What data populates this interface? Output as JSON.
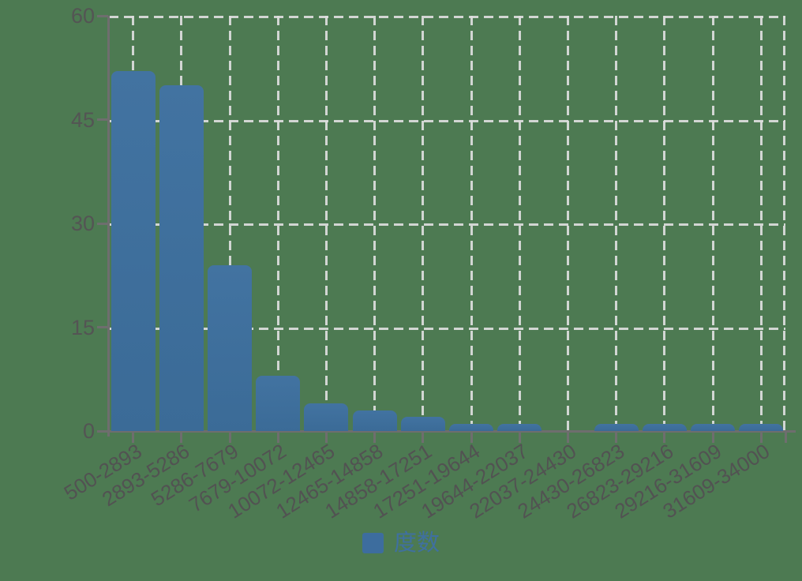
{
  "chart_data": {
    "type": "bar",
    "title": "",
    "categories": [
      "500-2893",
      "2893-5286",
      "5286-7679",
      "7679-10072",
      "10072-12465",
      "12465-14858",
      "14858-17251",
      "17251-19644",
      "19644-22037",
      "22037-24430",
      "24430-26823",
      "26823-29216",
      "29216-31609",
      "31609-34000"
    ],
    "series": [
      {
        "name": "度数",
        "values": [
          52,
          50,
          24,
          8,
          4,
          3,
          2,
          1,
          1,
          0,
          1,
          1,
          1,
          1
        ]
      }
    ],
    "xlabel": "",
    "ylabel": "",
    "ylim": [
      0,
      60
    ],
    "yticks": [
      0,
      15,
      30,
      45,
      60
    ],
    "grid": "dashed",
    "x_label_rotation_deg": -32,
    "legend_position": "bottom-center"
  },
  "legend": {
    "items": [
      {
        "label": "度数",
        "color": "#3d6d9e"
      }
    ]
  },
  "colors": {
    "background": "#4d7a52",
    "bar": "#3e6f9c",
    "axis": "#6e6e6e",
    "gridline": "#dedede",
    "tick_label": "#525252",
    "legend_text": "#3f70a0"
  }
}
